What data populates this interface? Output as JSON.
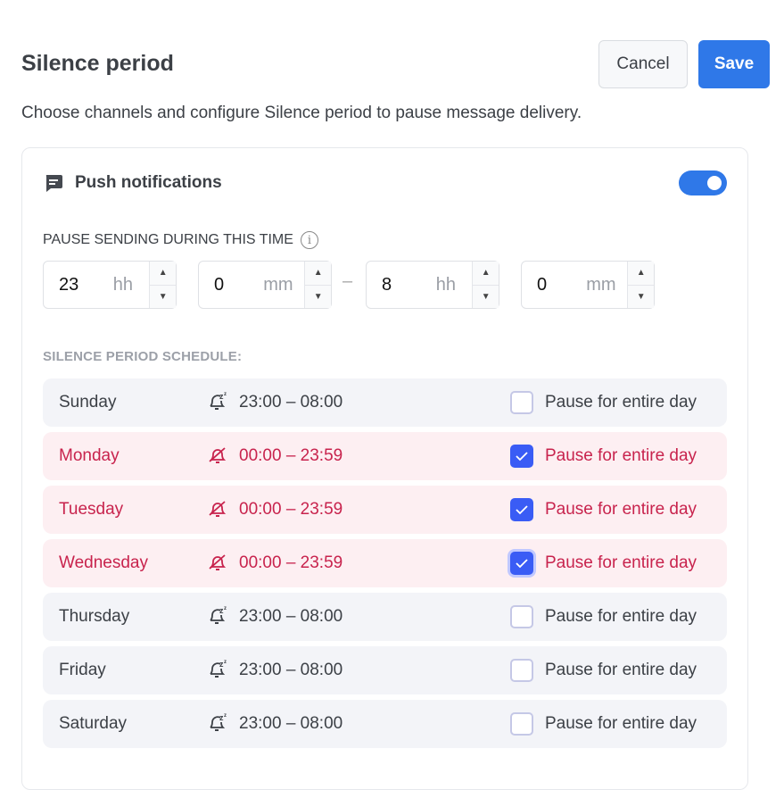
{
  "header": {
    "title": "Silence period",
    "cancel_label": "Cancel",
    "save_label": "Save",
    "subtitle": "Choose channels and configure Silence period to pause message delivery."
  },
  "channel": {
    "icon": "message-icon",
    "label": "Push notifications",
    "enabled": true
  },
  "pause": {
    "label": "PAUSE SENDING DURING THIS TIME",
    "info_icon": "info-icon",
    "inputs": [
      {
        "value": "23",
        "unit": "hh"
      },
      {
        "value": "0",
        "unit": "mm"
      },
      {
        "value": "8",
        "unit": "hh"
      },
      {
        "value": "0",
        "unit": "mm"
      }
    ],
    "separator": "–"
  },
  "schedule": {
    "label": "SILENCE PERIOD SCHEDULE:",
    "checkbox_label": "Pause for entire day",
    "days": [
      {
        "day": "Sunday",
        "time": "23:00 – 08:00",
        "checked": false
      },
      {
        "day": "Monday",
        "time": "00:00 – 23:59",
        "checked": true
      },
      {
        "day": "Tuesday",
        "time": "00:00 – 23:59",
        "checked": true
      },
      {
        "day": "Wednesday",
        "time": "00:00 – 23:59",
        "checked": true,
        "focused": true
      },
      {
        "day": "Thursday",
        "time": "23:00 – 08:00",
        "checked": false
      },
      {
        "day": "Friday",
        "time": "23:00 – 08:00",
        "checked": false
      },
      {
        "day": "Saturday",
        "time": "23:00 – 08:00",
        "checked": false
      }
    ]
  },
  "colors": {
    "accent": "#2f78e8",
    "checkbox": "#3a5cf5",
    "paused_text": "#c8234d",
    "paused_bg": "#fdeff2"
  }
}
